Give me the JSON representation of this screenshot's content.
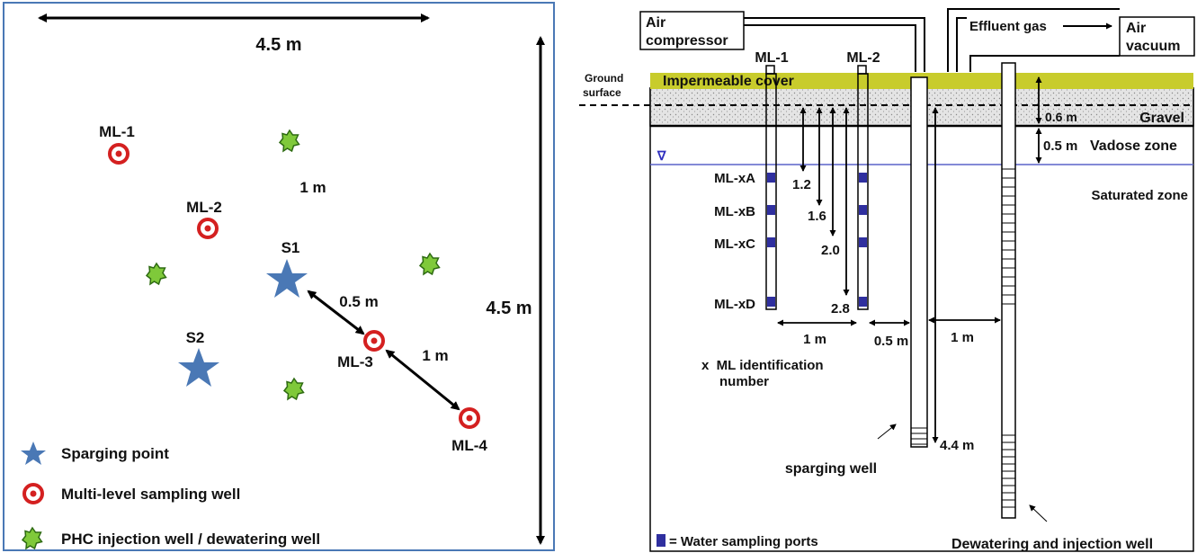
{
  "colors": {
    "frame": "#4a78b5",
    "star": "#4a78b5",
    "sampling_ring": "#d42020",
    "phc": "#7fc93a",
    "cover": "#c8cc2c",
    "water_table": "#5a62c8",
    "port": "#2f2f9f",
    "gravel": "#dedede"
  },
  "left_panel": {
    "dim_top": "4.5 m",
    "dim_right": "4.5 m",
    "dim_1m_upper": "1 m",
    "dim_05m": "0.5 m",
    "dim_1m_lower": "1 m",
    "wells": {
      "ml1": "ML-1",
      "ml2": "ML-2",
      "ml3": "ML-3",
      "ml4": "ML-4",
      "s1": "S1",
      "s2": "S2"
    },
    "legend": {
      "sparging": "Sparging point",
      "sampling": "Multi-level sampling well",
      "phc": "PHC injection well / dewatering well"
    }
  },
  "right_panel": {
    "air_compressor_1": "Air",
    "air_compressor_2": "compressor",
    "effluent_gas": "Effluent gas",
    "air_vacuum_1": "Air",
    "air_vacuum_2": "vacuum",
    "ml1": "ML-1",
    "ml2": "ML-2",
    "ground_surface_1": "Ground",
    "ground_surface_2": "surface",
    "cover": "Impermeable cover",
    "gravel": "Gravel",
    "dim_06": "0.6 m",
    "dim_05_vadose": "0.5 m",
    "vadose": "Vadose zone",
    "saturated": "Saturated zone",
    "water_table_symbol": "∇",
    "port_labels": [
      "ML-xA",
      "ML-xB",
      "ML-xC",
      "ML-xD"
    ],
    "depths": [
      "1.2",
      "1.6",
      "2.0",
      "2.8"
    ],
    "dim_1m_a": "1 m",
    "dim_05m": "0.5 m",
    "dim_1m_b": "1 m",
    "dim_44": "4.4 m",
    "footnote_1": "x  ML identification",
    "footnote_2": "number",
    "sparging_well": "sparging well",
    "legend_ports": "= Water sampling ports",
    "dewatering": "Dewatering and injection well"
  }
}
